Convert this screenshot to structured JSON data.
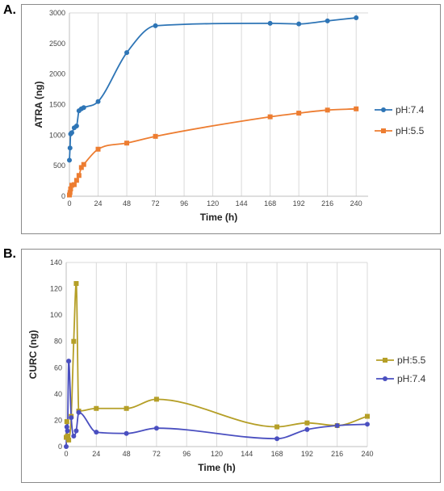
{
  "chart_data": [
    {
      "panel_label": "A.",
      "type": "line",
      "xlabel": "Time (h)",
      "ylabel": "ATRA (ng)",
      "xlim": [
        0,
        250
      ],
      "ylim": [
        0,
        3000
      ],
      "x_ticks": [
        0,
        24,
        48,
        72,
        96,
        120,
        144,
        168,
        192,
        216,
        240
      ],
      "y_ticks": [
        0,
        500,
        1000,
        1500,
        2000,
        2500,
        3000
      ],
      "grid": "vertical",
      "legend_position": "right",
      "series": [
        {
          "name": "pH:7.4",
          "color": "#2e75b6",
          "marker": "circle",
          "x": [
            0,
            0.5,
            1,
            2,
            4,
            6,
            8,
            10,
            12,
            24,
            48,
            72,
            168,
            192,
            216,
            240
          ],
          "y": [
            590,
            790,
            1020,
            1040,
            1120,
            1150,
            1400,
            1430,
            1450,
            1550,
            2350,
            2790,
            2830,
            2820,
            2870,
            2920
          ]
        },
        {
          "name": "pH:5.5",
          "color": "#ed7d31",
          "marker": "square",
          "x": [
            0,
            0.5,
            1,
            2,
            4,
            6,
            8,
            10,
            12,
            24,
            48,
            72,
            168,
            192,
            216,
            240
          ],
          "y": [
            20,
            60,
            120,
            180,
            190,
            260,
            340,
            470,
            520,
            770,
            870,
            980,
            1300,
            1360,
            1410,
            1430
          ]
        }
      ]
    },
    {
      "panel_label": "B.",
      "type": "line",
      "xlabel": "Time (h)",
      "ylabel": "CURC (ng)",
      "xlim": [
        0,
        240
      ],
      "ylim": [
        0,
        140
      ],
      "x_ticks": [
        0,
        24,
        48,
        72,
        96,
        120,
        144,
        168,
        192,
        216,
        240
      ],
      "y_ticks": [
        0,
        20,
        40,
        60,
        80,
        100,
        120,
        140
      ],
      "grid": "vertical",
      "legend_position": "right",
      "series": [
        {
          "name": "pH:5.5",
          "color": "#b59f27",
          "marker": "square",
          "x": [
            0,
            0.5,
            1,
            2,
            4,
            6,
            8,
            10,
            24,
            48,
            72,
            168,
            192,
            216,
            240
          ],
          "y": [
            7,
            19,
            8,
            5,
            23,
            80,
            124,
            27,
            29,
            29,
            36,
            15,
            18,
            16,
            23
          ]
        },
        {
          "name": "pH:7.4",
          "color": "#4a4fc0",
          "marker": "circle",
          "x": [
            0,
            0.5,
            1,
            2,
            4,
            6,
            8,
            10,
            24,
            48,
            72,
            168,
            192,
            216,
            240
          ],
          "y": [
            0,
            15,
            12,
            65,
            22,
            8,
            12,
            26,
            11,
            10,
            14,
            6,
            13,
            16,
            17
          ]
        }
      ]
    }
  ]
}
